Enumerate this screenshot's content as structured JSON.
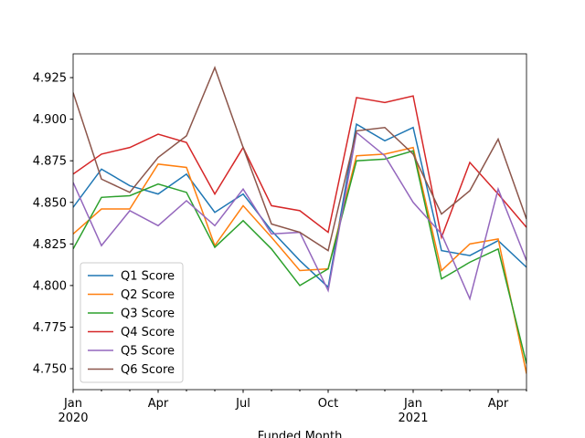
{
  "chart_data": {
    "type": "line",
    "xlabel": "Funded Month",
    "x": [
      "2020-01",
      "2020-02",
      "2020-03",
      "2020-04",
      "2020-05",
      "2020-06",
      "2020-07",
      "2020-08",
      "2020-09",
      "2020-10",
      "2020-11",
      "2020-12",
      "2021-01",
      "2021-02",
      "2021-03",
      "2021-04",
      "2021-05"
    ],
    "xlim": [
      "2020-01",
      "2021-05"
    ],
    "xticks": [
      {
        "value": "2020-01",
        "label": "Jan\n2020"
      },
      {
        "value": "2020-04",
        "label": "Apr"
      },
      {
        "value": "2020-07",
        "label": "Jul"
      },
      {
        "value": "2020-10",
        "label": "Oct"
      },
      {
        "value": "2021-01",
        "label": "Jan\n2021"
      },
      {
        "value": "2021-04",
        "label": "Apr"
      }
    ],
    "ylim": [
      4.7374,
      4.9393
    ],
    "yticks": [
      {
        "value": 4.75,
        "label": "4.750"
      },
      {
        "value": 4.775,
        "label": "4.775"
      },
      {
        "value": 4.8,
        "label": "4.800"
      },
      {
        "value": 4.825,
        "label": "4.825"
      },
      {
        "value": 4.85,
        "label": "4.850"
      },
      {
        "value": 4.875,
        "label": "4.875"
      },
      {
        "value": 4.9,
        "label": "4.900"
      },
      {
        "value": 4.925,
        "label": "4.925"
      }
    ],
    "legend": "lower left",
    "series": [
      {
        "name": "Q1 Score",
        "color": "#1f77b4",
        "values": [
          4.847,
          4.87,
          4.86,
          4.855,
          4.867,
          4.844,
          4.855,
          4.833,
          4.815,
          4.799,
          4.897,
          4.887,
          4.895,
          4.821,
          4.818,
          4.827,
          4.811
        ]
      },
      {
        "name": "Q2 Score",
        "color": "#ff7f0e",
        "values": [
          4.831,
          4.846,
          4.846,
          4.873,
          4.871,
          4.824,
          4.848,
          4.829,
          4.809,
          4.81,
          4.878,
          4.879,
          4.883,
          4.809,
          4.825,
          4.828,
          4.747
        ]
      },
      {
        "name": "Q3 Score",
        "color": "#2ca02c",
        "values": [
          4.822,
          4.853,
          4.854,
          4.861,
          4.856,
          4.823,
          4.839,
          4.822,
          4.8,
          4.81,
          4.875,
          4.876,
          4.881,
          4.804,
          4.814,
          4.822,
          4.753
        ]
      },
      {
        "name": "Q4 Score",
        "color": "#d62728",
        "values": [
          4.867,
          4.879,
          4.883,
          4.891,
          4.886,
          4.855,
          4.883,
          4.848,
          4.845,
          4.832,
          4.913,
          4.91,
          4.914,
          4.829,
          4.874,
          4.855,
          4.835
        ]
      },
      {
        "name": "Q5 Score",
        "color": "#9467bd",
        "values": [
          4.862,
          4.824,
          4.845,
          4.836,
          4.851,
          4.836,
          4.858,
          4.831,
          4.832,
          4.797,
          4.892,
          4.878,
          4.85,
          4.831,
          4.792,
          4.858,
          4.815
        ]
      },
      {
        "name": "Q6 Score",
        "color": "#8c564b",
        "values": [
          4.916,
          4.864,
          4.856,
          4.877,
          4.89,
          4.931,
          4.883,
          4.837,
          4.832,
          4.821,
          4.893,
          4.895,
          4.879,
          4.843,
          4.857,
          4.888,
          4.84
        ]
      }
    ]
  }
}
